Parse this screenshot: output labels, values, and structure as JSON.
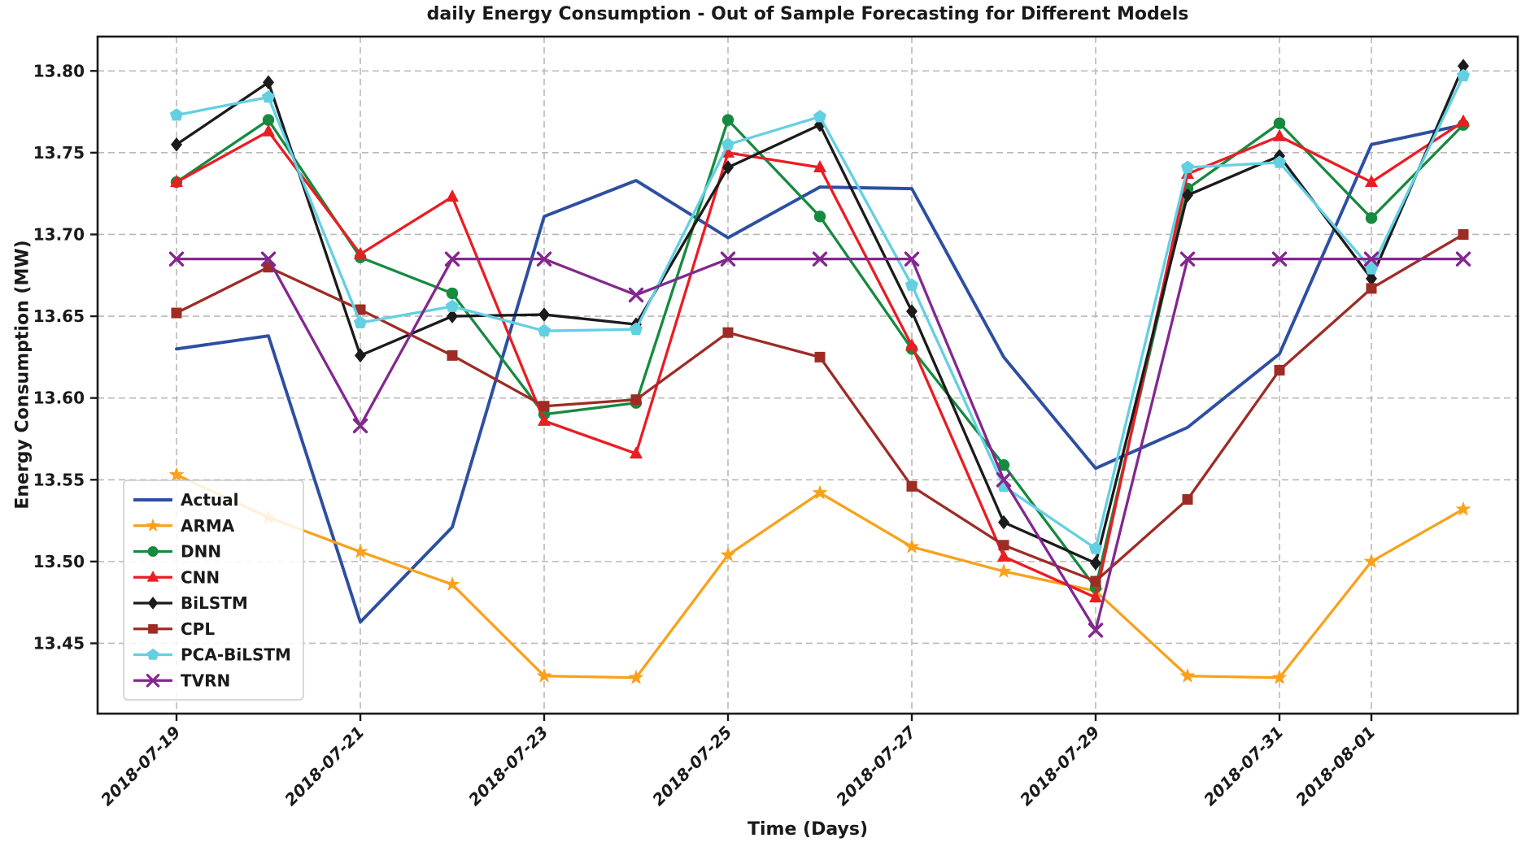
{
  "chart_data": {
    "type": "line",
    "title": "daily Energy Consumption - Out of Sample Forecasting for Different Models",
    "xlabel": "Time (Days)",
    "ylabel": "Energy Consumption (MW)",
    "x_dates": [
      "2018-07-19",
      "2018-07-20",
      "2018-07-21",
      "2018-07-22",
      "2018-07-23",
      "2018-07-24",
      "2018-07-25",
      "2018-07-26",
      "2018-07-27",
      "2018-07-28",
      "2018-07-29",
      "2018-07-30",
      "2018-07-31",
      "2018-08-01",
      "2018-08-02"
    ],
    "xtick_labels": [
      "2018-07-19",
      "2018-07-21",
      "2018-07-23",
      "2018-07-25",
      "2018-07-27",
      "2018-07-29",
      "2018-07-31",
      "2018-08-01"
    ],
    "xtick_day_indices": [
      0,
      2,
      4,
      6,
      8,
      10,
      12,
      13
    ],
    "yticks": [
      13.45,
      13.5,
      13.55,
      13.6,
      13.65,
      13.7,
      13.75,
      13.8
    ],
    "ytick_labels": [
      "13.45",
      "13.50",
      "13.55",
      "13.60",
      "13.65",
      "13.70",
      "13.75",
      "13.80"
    ],
    "ylim": [
      13.407,
      13.821
    ],
    "grid": true,
    "grid_style": "dashed",
    "legend_position": "lower-left",
    "series": [
      {
        "name": "Actual",
        "color": "#2d4fa2",
        "marker": "none",
        "values": [
          13.63,
          13.638,
          13.463,
          13.521,
          13.711,
          13.733,
          13.698,
          13.729,
          13.728,
          13.625,
          13.557,
          13.582,
          13.627,
          13.755,
          13.767
        ]
      },
      {
        "name": "ARMA",
        "color": "#f9a11b",
        "marker": "star",
        "values": [
          13.553,
          13.527,
          13.506,
          13.486,
          13.43,
          13.429,
          13.504,
          13.542,
          13.509,
          13.494,
          13.482,
          13.43,
          13.429,
          13.5,
          13.532
        ]
      },
      {
        "name": "DNN",
        "color": "#168a3e",
        "marker": "circle",
        "values": [
          13.732,
          13.77,
          13.686,
          13.664,
          13.59,
          13.597,
          13.77,
          13.711,
          13.63,
          13.559,
          13.484,
          13.728,
          13.768,
          13.71,
          13.767
        ]
      },
      {
        "name": "CNN",
        "color": "#ea1c24",
        "marker": "triangle",
        "values": [
          13.732,
          13.763,
          13.688,
          13.723,
          13.586,
          13.566,
          13.75,
          13.741,
          13.632,
          13.503,
          13.478,
          13.737,
          13.76,
          13.732,
          13.769
        ]
      },
      {
        "name": "BiLSTM",
        "color": "#1b1b1b",
        "marker": "diamond",
        "values": [
          13.755,
          13.793,
          13.626,
          13.65,
          13.651,
          13.645,
          13.741,
          13.767,
          13.653,
          13.524,
          13.499,
          13.724,
          13.748,
          13.673,
          13.803
        ]
      },
      {
        "name": "CPL",
        "color": "#9e2c25",
        "marker": "square",
        "values": [
          13.652,
          13.68,
          13.654,
          13.626,
          13.595,
          13.599,
          13.64,
          13.625,
          13.546,
          13.51,
          13.488,
          13.538,
          13.617,
          13.667,
          13.7
        ]
      },
      {
        "name": "PCA-BiLSTM",
        "color": "#63d0e2",
        "marker": "pentagon",
        "values": [
          13.773,
          13.784,
          13.646,
          13.656,
          13.641,
          13.642,
          13.755,
          13.772,
          13.669,
          13.546,
          13.508,
          13.741,
          13.744,
          13.679,
          13.797
        ]
      },
      {
        "name": "TVRN",
        "color": "#83278f",
        "marker": "x",
        "values": [
          13.685,
          13.685,
          13.583,
          13.685,
          13.685,
          13.663,
          13.685,
          13.685,
          13.685,
          13.55,
          13.458,
          13.685,
          13.685,
          13.685,
          13.685
        ]
      }
    ]
  }
}
